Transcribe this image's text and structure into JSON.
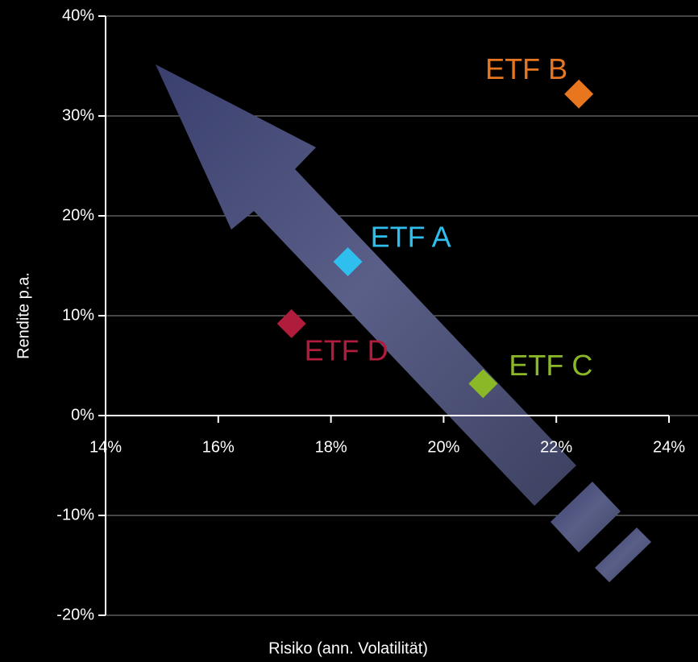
{
  "chart_data": {
    "type": "scatter",
    "x_label": "Risiko (ann. Volatilität)",
    "y_label": "Rendite p.a.",
    "xlim": [
      14,
      24
    ],
    "ylim": [
      -20,
      40
    ],
    "xticks": [
      {
        "value": 14,
        "label": "14%"
      },
      {
        "value": 16,
        "label": "16%"
      },
      {
        "value": 18,
        "label": "18%"
      },
      {
        "value": 20,
        "label": "20%"
      },
      {
        "value": 22,
        "label": "22%"
      },
      {
        "value": 24,
        "label": "24%"
      }
    ],
    "yticks": [
      {
        "value": -20,
        "label": "-20%"
      },
      {
        "value": -10,
        "label": "-10%"
      },
      {
        "value": 0,
        "label": "0%"
      },
      {
        "value": 10,
        "label": "10%"
      },
      {
        "value": 20,
        "label": "20%"
      },
      {
        "value": 30,
        "label": "30%"
      },
      {
        "value": 40,
        "label": "40%"
      }
    ],
    "grid": true,
    "series": [
      {
        "name": "ETF A",
        "color": "#2fbfef",
        "x": [
          18.3
        ],
        "values": [
          15.4
        ]
      },
      {
        "name": "ETF B",
        "color": "#e8761e",
        "x": [
          22.4
        ],
        "values": [
          32.2
        ]
      },
      {
        "name": "ETF C",
        "color": "#8bb826",
        "x": [
          20.7
        ],
        "values": [
          3.2
        ]
      },
      {
        "name": "ETF D",
        "color": "#b01c3c",
        "x": [
          17.3
        ],
        "values": [
          9.2
        ]
      }
    ]
  }
}
